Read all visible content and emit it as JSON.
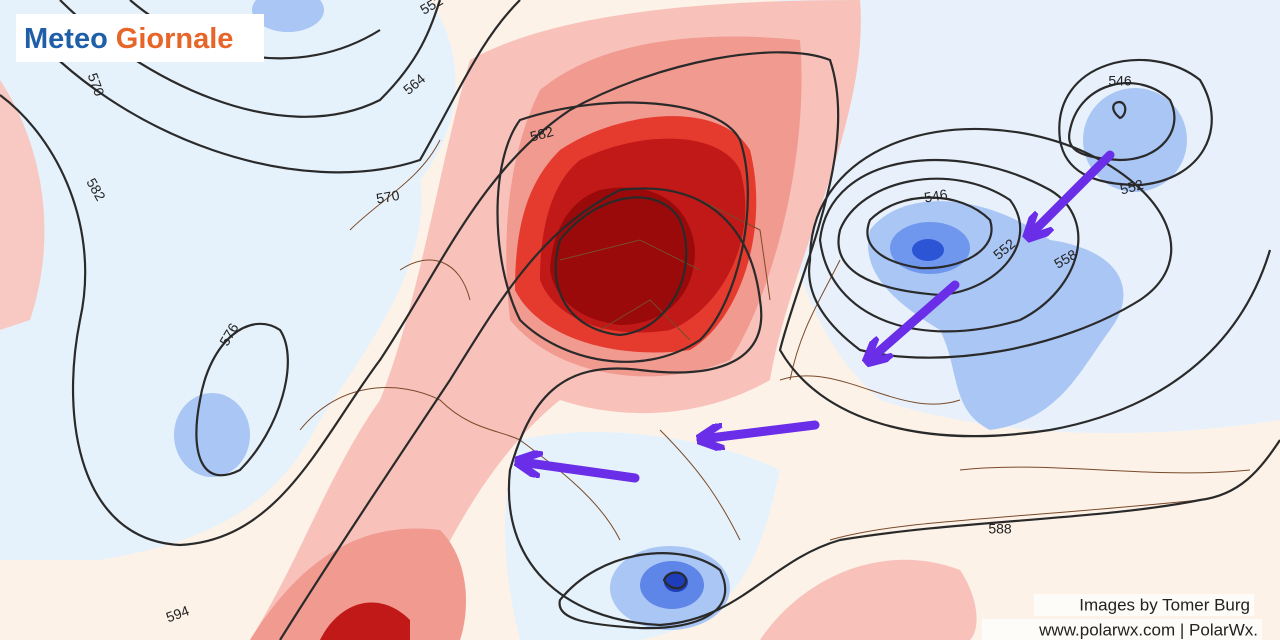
{
  "logo": {
    "word1": "Meteo",
    "word2": "Giornale"
  },
  "contour_labels": [
    570,
    564,
    552,
    582,
    570,
    582,
    576,
    546,
    552,
    546,
    552,
    558,
    588,
    594
  ],
  "credits": {
    "line1": "Images by Tomer Burg",
    "line2": "www.polarwx.com | PolarWx."
  }
}
